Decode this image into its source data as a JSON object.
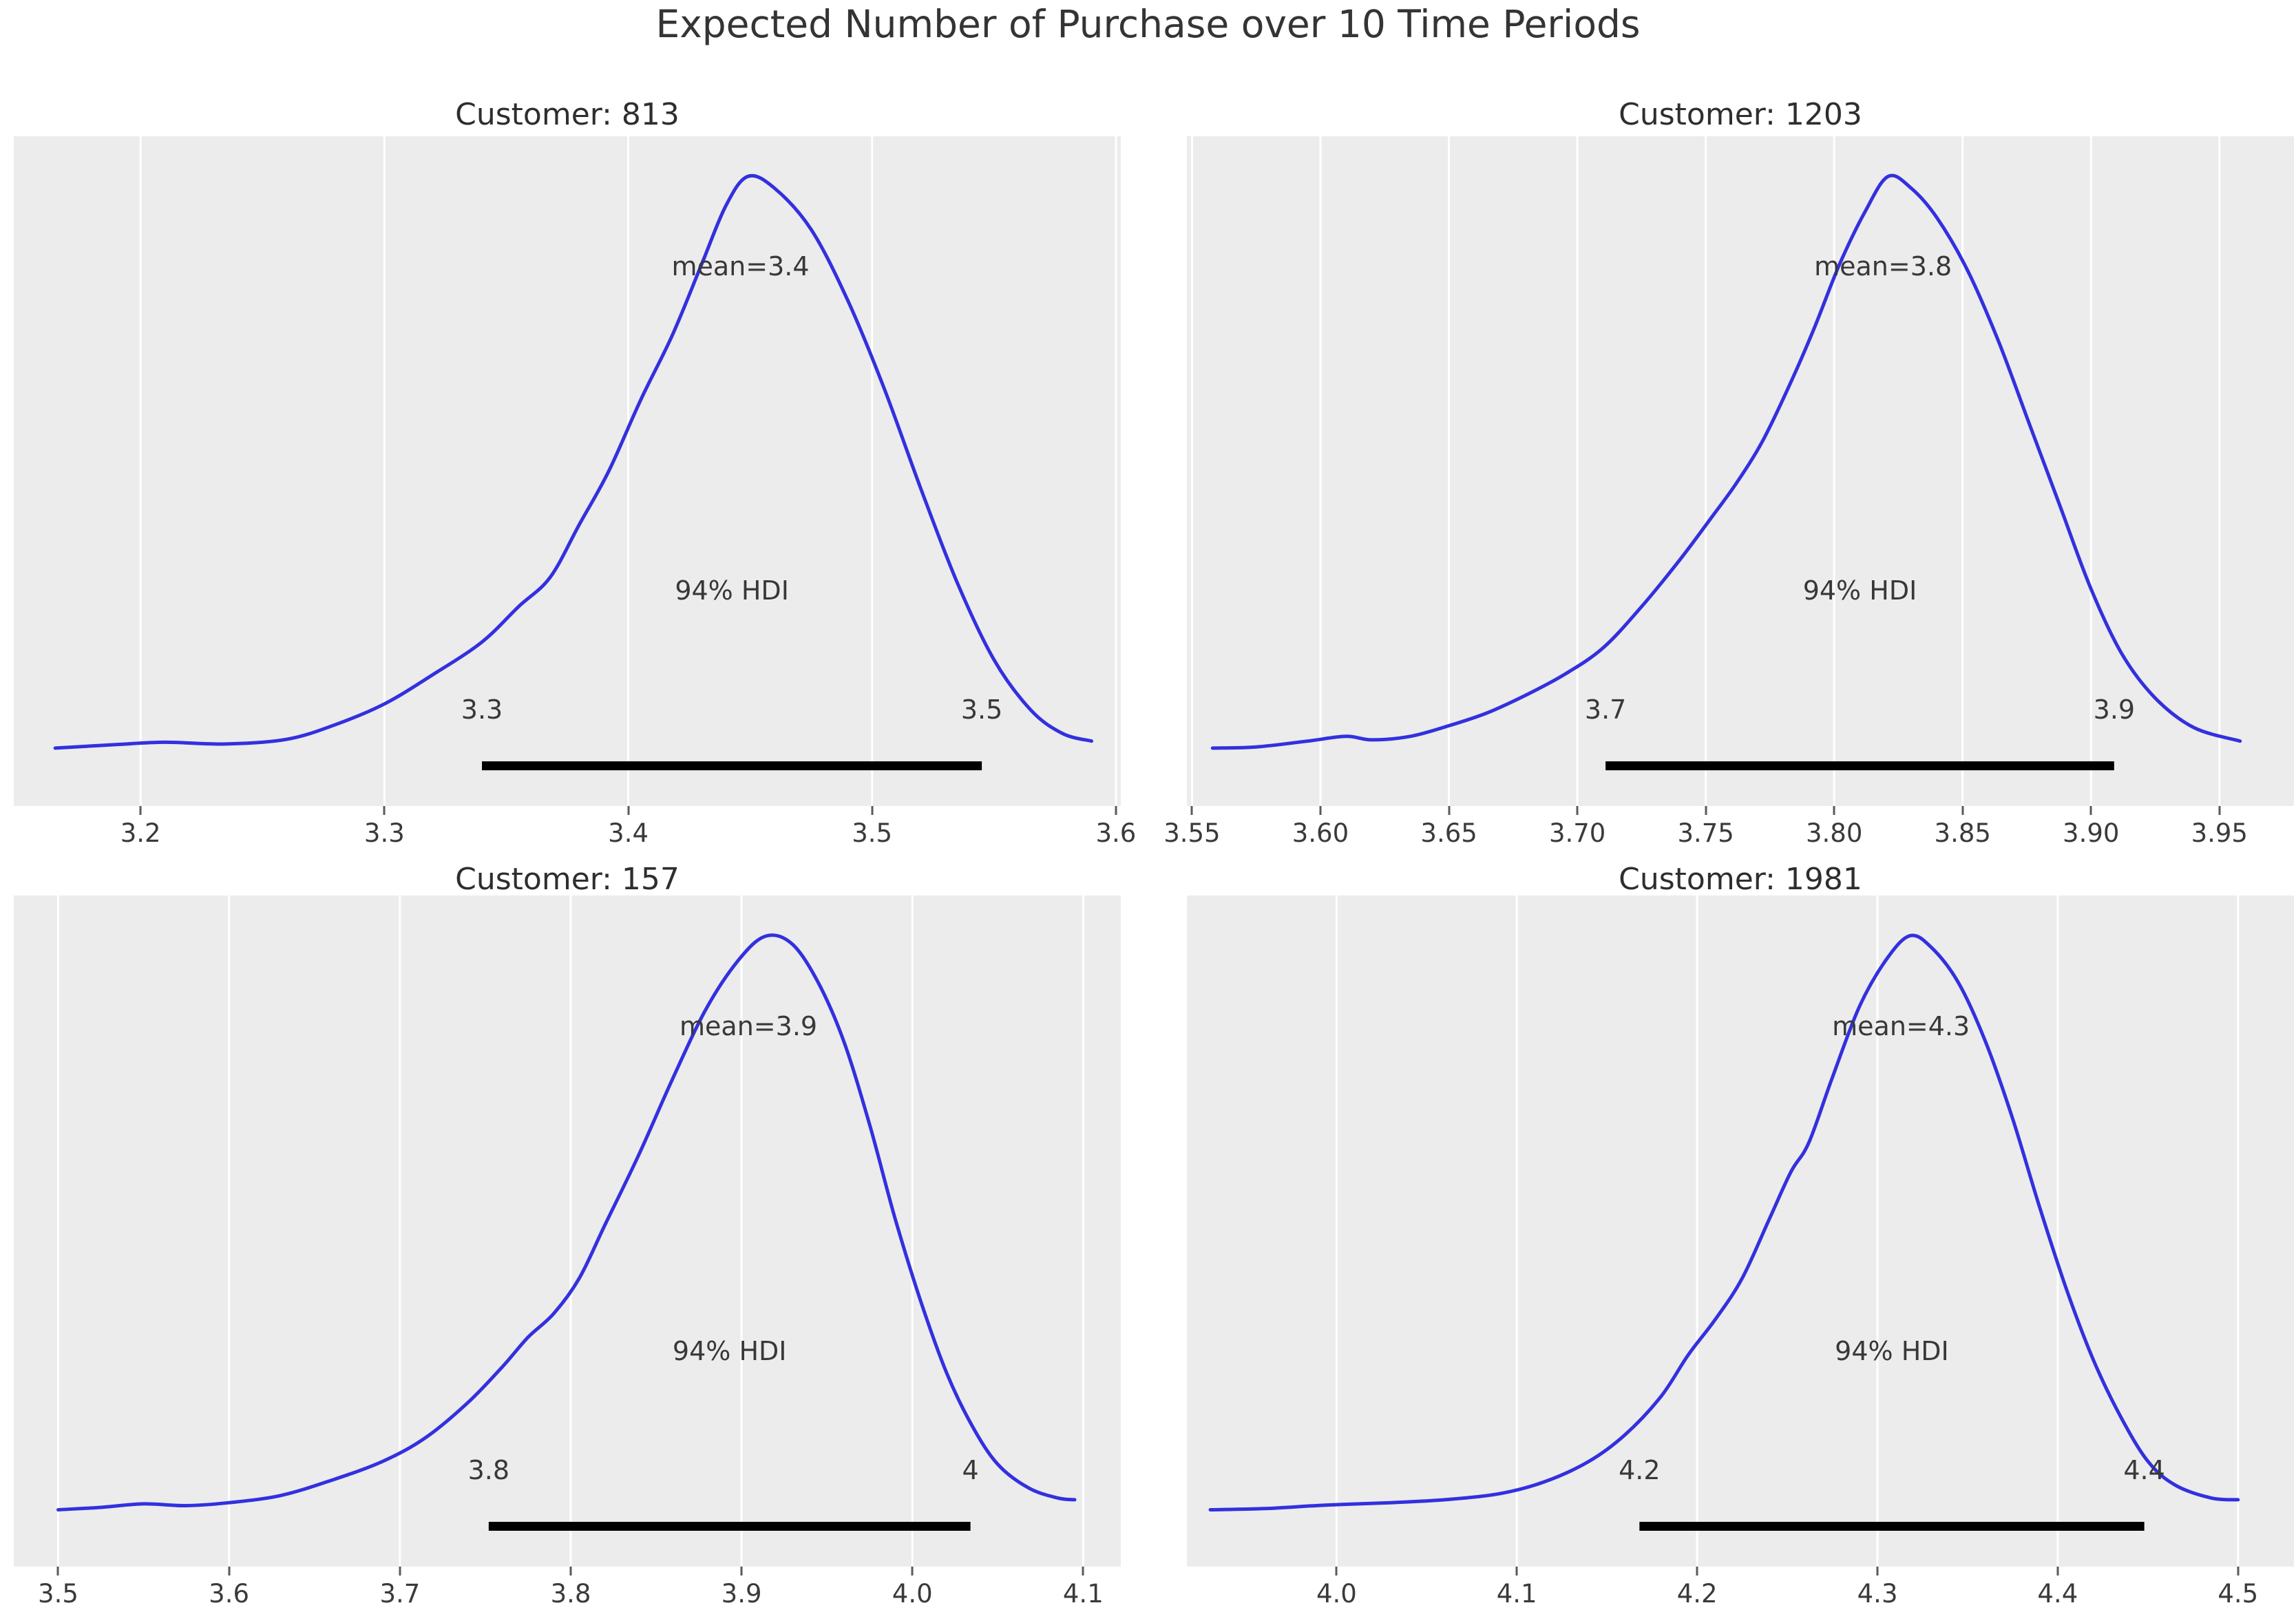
{
  "figure": {
    "title": "Expected Number of Purchase over 10 Time Periods"
  },
  "style": {
    "curve_color": "#3330df",
    "plot_bg": "#ececec",
    "grid_color": "#ffffff",
    "hdi_bar_color": "#000000",
    "text_color": "#3a3a3a"
  },
  "chart_data": [
    {
      "type": "kde",
      "title": "Customer: 813",
      "xlim": [
        3.148,
        3.602
      ],
      "xticks": {
        "labels": [
          "3.2",
          "3.3",
          "3.4",
          "3.5",
          "3.6"
        ],
        "values": [
          3.2,
          3.3,
          3.4,
          3.5,
          3.6
        ]
      },
      "mean": 3.4,
      "mean_x": 3.446,
      "hdi": {
        "prob": 0.94,
        "lower": 3.34,
        "upper": 3.545
      },
      "annotations": {
        "mean_label": "mean=3.4",
        "hdi_text": "94% HDI",
        "hdi_lower_label": "3.3",
        "hdi_upper_label": "3.5"
      },
      "points": [
        [
          3.165,
          0.03
        ],
        [
          3.19,
          0.036
        ],
        [
          3.21,
          0.04
        ],
        [
          3.235,
          0.037
        ],
        [
          3.26,
          0.045
        ],
        [
          3.28,
          0.07
        ],
        [
          3.3,
          0.105
        ],
        [
          3.32,
          0.155
        ],
        [
          3.34,
          0.21
        ],
        [
          3.355,
          0.27
        ],
        [
          3.368,
          0.32
        ],
        [
          3.38,
          0.41
        ],
        [
          3.392,
          0.5
        ],
        [
          3.405,
          0.62
        ],
        [
          3.418,
          0.73
        ],
        [
          3.43,
          0.85
        ],
        [
          3.44,
          0.95
        ],
        [
          3.449,
          1.0
        ],
        [
          3.46,
          0.98
        ],
        [
          3.475,
          0.91
        ],
        [
          3.49,
          0.79
        ],
        [
          3.505,
          0.64
        ],
        [
          3.52,
          0.47
        ],
        [
          3.535,
          0.31
        ],
        [
          3.55,
          0.18
        ],
        [
          3.565,
          0.095
        ],
        [
          3.578,
          0.055
        ],
        [
          3.59,
          0.042
        ]
      ]
    },
    {
      "type": "kde",
      "title": "Customer: 1203",
      "xlim": [
        3.548,
        3.979
      ],
      "xticks": {
        "labels": [
          "3.55",
          "3.60",
          "3.65",
          "3.70",
          "3.75",
          "3.80",
          "3.85",
          "3.90",
          "3.95"
        ],
        "values": [
          3.55,
          3.6,
          3.65,
          3.7,
          3.75,
          3.8,
          3.85,
          3.9,
          3.95
        ]
      },
      "mean": 3.8,
      "mean_x": 3.819,
      "hdi": {
        "prob": 0.94,
        "lower": 3.711,
        "upper": 3.909
      },
      "annotations": {
        "mean_label": "mean=3.8",
        "hdi_text": "94% HDI",
        "hdi_lower_label": "3.7",
        "hdi_upper_label": "3.9"
      },
      "points": [
        [
          3.558,
          0.03
        ],
        [
          3.575,
          0.032
        ],
        [
          3.595,
          0.042
        ],
        [
          3.61,
          0.05
        ],
        [
          3.62,
          0.044
        ],
        [
          3.635,
          0.05
        ],
        [
          3.65,
          0.068
        ],
        [
          3.665,
          0.09
        ],
        [
          3.68,
          0.12
        ],
        [
          3.695,
          0.155
        ],
        [
          3.71,
          0.2
        ],
        [
          3.725,
          0.27
        ],
        [
          3.74,
          0.35
        ],
        [
          3.752,
          0.42
        ],
        [
          3.762,
          0.48
        ],
        [
          3.772,
          0.55
        ],
        [
          3.782,
          0.64
        ],
        [
          3.792,
          0.74
        ],
        [
          3.802,
          0.85
        ],
        [
          3.812,
          0.94
        ],
        [
          3.821,
          1.0
        ],
        [
          3.83,
          0.98
        ],
        [
          3.84,
          0.93
        ],
        [
          3.852,
          0.84
        ],
        [
          3.864,
          0.72
        ],
        [
          3.876,
          0.58
        ],
        [
          3.888,
          0.44
        ],
        [
          3.9,
          0.3
        ],
        [
          3.912,
          0.19
        ],
        [
          3.925,
          0.115
        ],
        [
          3.94,
          0.065
        ],
        [
          3.958,
          0.042
        ]
      ]
    },
    {
      "type": "kde",
      "title": "Customer: 157",
      "xlim": [
        3.474,
        4.122
      ],
      "xticks": {
        "labels": [
          "3.5",
          "3.6",
          "3.7",
          "3.8",
          "3.9",
          "4.0",
          "4.1"
        ],
        "values": [
          3.5,
          3.6,
          3.7,
          3.8,
          3.9,
          4.0,
          4.1
        ]
      },
      "mean": 3.9,
      "mean_x": 3.904,
      "hdi": {
        "prob": 0.94,
        "lower": 3.752,
        "upper": 4.034
      },
      "annotations": {
        "mean_label": "mean=3.9",
        "hdi_text": "94% HDI",
        "hdi_lower_label": "3.8",
        "hdi_upper_label": "4"
      },
      "points": [
        [
          3.5,
          0.028
        ],
        [
          3.525,
          0.032
        ],
        [
          3.55,
          0.038
        ],
        [
          3.575,
          0.035
        ],
        [
          3.6,
          0.04
        ],
        [
          3.63,
          0.052
        ],
        [
          3.66,
          0.078
        ],
        [
          3.69,
          0.11
        ],
        [
          3.715,
          0.15
        ],
        [
          3.74,
          0.21
        ],
        [
          3.76,
          0.27
        ],
        [
          3.775,
          0.32
        ],
        [
          3.79,
          0.36
        ],
        [
          3.805,
          0.42
        ],
        [
          3.82,
          0.51
        ],
        [
          3.84,
          0.63
        ],
        [
          3.86,
          0.76
        ],
        [
          3.88,
          0.88
        ],
        [
          3.9,
          0.965
        ],
        [
          3.915,
          1.0
        ],
        [
          3.93,
          0.985
        ],
        [
          3.945,
          0.92
        ],
        [
          3.96,
          0.82
        ],
        [
          3.975,
          0.68
        ],
        [
          3.99,
          0.52
        ],
        [
          4.005,
          0.38
        ],
        [
          4.02,
          0.26
        ],
        [
          4.035,
          0.17
        ],
        [
          4.05,
          0.105
        ],
        [
          4.068,
          0.065
        ],
        [
          4.085,
          0.048
        ],
        [
          4.095,
          0.045
        ]
      ]
    },
    {
      "type": "kde",
      "title": "Customer: 1981",
      "xlim": [
        3.917,
        4.531
      ],
      "xticks": {
        "labels": [
          "4.0",
          "4.1",
          "4.2",
          "4.3",
          "4.4",
          "4.5"
        ],
        "values": [
          4.0,
          4.1,
          4.2,
          4.3,
          4.4,
          4.5
        ]
      },
      "mean": 4.3,
      "mean_x": 4.313,
      "hdi": {
        "prob": 0.94,
        "lower": 4.168,
        "upper": 4.448
      },
      "annotations": {
        "mean_label": "mean=4.3",
        "hdi_text": "94% HDI",
        "hdi_lower_label": "4.2",
        "hdi_upper_label": "4.4"
      },
      "points": [
        [
          3.93,
          0.028
        ],
        [
          3.96,
          0.03
        ],
        [
          3.995,
          0.036
        ],
        [
          4.03,
          0.04
        ],
        [
          4.06,
          0.045
        ],
        [
          4.09,
          0.055
        ],
        [
          4.115,
          0.075
        ],
        [
          4.14,
          0.11
        ],
        [
          4.16,
          0.155
        ],
        [
          4.18,
          0.22
        ],
        [
          4.195,
          0.29
        ],
        [
          4.21,
          0.35
        ],
        [
          4.225,
          0.42
        ],
        [
          4.24,
          0.52
        ],
        [
          4.252,
          0.6
        ],
        [
          4.262,
          0.65
        ],
        [
          4.275,
          0.76
        ],
        [
          4.29,
          0.88
        ],
        [
          4.305,
          0.96
        ],
        [
          4.318,
          1.0
        ],
        [
          4.33,
          0.98
        ],
        [
          4.345,
          0.92
        ],
        [
          4.36,
          0.82
        ],
        [
          4.375,
          0.69
        ],
        [
          4.39,
          0.54
        ],
        [
          4.405,
          0.4
        ],
        [
          4.42,
          0.28
        ],
        [
          4.435,
          0.185
        ],
        [
          4.45,
          0.11
        ],
        [
          4.465,
          0.07
        ],
        [
          4.485,
          0.048
        ],
        [
          4.5,
          0.045
        ]
      ]
    }
  ]
}
